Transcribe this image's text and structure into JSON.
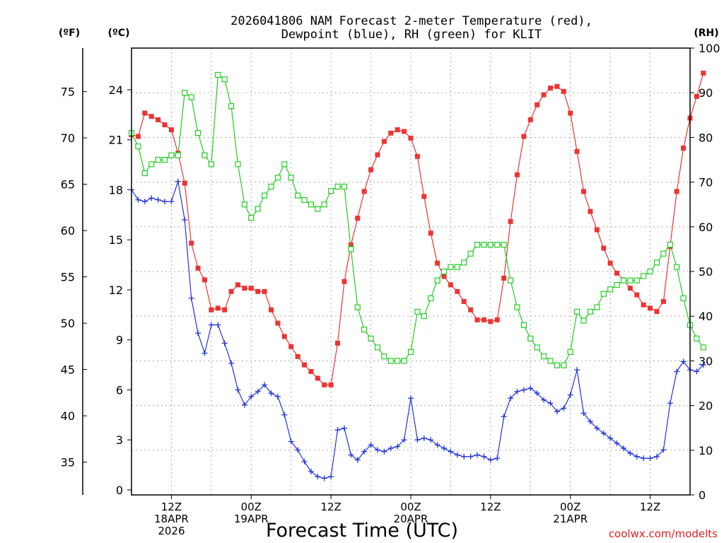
{
  "chart_data": {
    "type": "line",
    "title_line1": "2026041806 NAM Forecast 2-meter Temperature (red),",
    "title_line2": "Dewpoint (blue), RH (green) for KLIT",
    "xlabel": "Forecast Time (UTC)",
    "watermark": "coolwx.com/modelts",
    "unit_f": "(ºF)",
    "unit_c": "(ºC)",
    "unit_rh": "(RH)",
    "x_start_hour": 0,
    "x_end_hour": 84,
    "c_range": [
      -0.3,
      26.5
    ],
    "rh_range": [
      0,
      100
    ],
    "c_ticks": [
      "0",
      "3",
      "6",
      "9",
      "12",
      "15",
      "18",
      "21",
      "24"
    ],
    "f_ticks": [
      "35",
      "40",
      "45",
      "50",
      "55",
      "60",
      "65",
      "70",
      "75"
    ],
    "rh_ticks": [
      "0",
      "10",
      "20",
      "30",
      "40",
      "50",
      "60",
      "70",
      "80",
      "90",
      "100"
    ],
    "x_ticks": [
      {
        "hour": 6,
        "lines": [
          "12Z",
          "18APR",
          "2026"
        ]
      },
      {
        "hour": 18,
        "lines": [
          "00Z",
          "19APR"
        ]
      },
      {
        "hour": 30,
        "lines": [
          "12Z"
        ]
      },
      {
        "hour": 42,
        "lines": [
          "00Z",
          "20APR"
        ]
      },
      {
        "hour": 54,
        "lines": [
          "12Z"
        ]
      },
      {
        "hour": 66,
        "lines": [
          "00Z",
          "21APR"
        ]
      },
      {
        "hour": 78,
        "lines": [
          "12Z"
        ]
      }
    ],
    "colors": {
      "temperature": "#ee3333",
      "dewpoint": "#2233dd",
      "rh": "#22cc22"
    },
    "series": [
      {
        "key": "temperature",
        "axis": "c",
        "values": [
          21.3,
          21.2,
          22.6,
          22.4,
          22.2,
          21.9,
          21.6,
          20.2,
          18.4,
          14.8,
          13.3,
          12.6,
          10.8,
          10.9,
          10.8,
          11.9,
          12.3,
          12.1,
          12.1,
          11.9,
          11.9,
          10.8,
          10.0,
          9.2,
          8.6,
          8.0,
          7.5,
          7.1,
          6.7,
          6.3,
          6.3,
          8.8,
          12.5,
          14.7,
          16.3,
          17.9,
          19.2,
          20.1,
          20.9,
          21.4,
          21.6,
          21.5,
          21.1,
          20.0,
          17.6,
          15.4,
          13.6,
          12.8,
          12.3,
          11.9,
          11.3,
          10.8,
          10.2,
          10.2,
          10.1,
          10.2,
          12.7,
          16.1,
          18.9,
          21.2,
          22.2,
          23.1,
          23.7,
          24.1,
          24.2,
          23.9,
          22.6,
          20.3,
          17.9,
          16.7,
          15.6,
          14.5,
          13.6,
          13.0,
          12.6,
          12.1,
          11.7,
          11.1,
          10.9,
          10.7,
          11.3,
          14.6,
          17.9,
          20.5,
          22.3,
          23.6,
          25.0
        ]
      },
      {
        "key": "dewpoint",
        "axis": "c",
        "values": [
          18.0,
          17.4,
          17.3,
          17.5,
          17.4,
          17.3,
          17.3,
          18.5,
          16.2,
          11.5,
          9.4,
          8.2,
          9.9,
          9.9,
          8.8,
          7.6,
          6.0,
          5.1,
          5.6,
          5.9,
          6.3,
          5.8,
          5.6,
          4.5,
          2.9,
          2.4,
          1.7,
          1.1,
          0.8,
          0.7,
          0.8,
          3.6,
          3.7,
          2.1,
          1.8,
          2.3,
          2.7,
          2.4,
          2.3,
          2.5,
          2.6,
          3.0,
          5.5,
          3.0,
          3.1,
          3.0,
          2.7,
          2.5,
          2.3,
          2.1,
          2.0,
          2.0,
          2.1,
          2.0,
          1.8,
          1.9,
          4.4,
          5.5,
          5.9,
          6.0,
          6.1,
          5.8,
          5.4,
          5.2,
          4.7,
          4.9,
          5.7,
          7.2,
          4.6,
          4.1,
          3.7,
          3.4,
          3.1,
          2.8,
          2.5,
          2.2,
          2.0,
          1.9,
          1.9,
          2.0,
          2.4,
          5.2,
          7.1,
          7.7,
          7.2,
          7.1,
          7.5
        ]
      },
      {
        "key": "rh",
        "axis": "rh",
        "values": [
          81,
          78,
          72,
          74,
          75,
          75,
          76,
          76,
          90,
          89,
          81,
          76,
          74,
          94,
          93,
          87,
          74,
          65,
          62,
          64,
          67,
          69,
          71,
          74,
          71,
          67,
          66,
          65,
          64,
          65,
          68,
          69,
          69,
          55,
          42,
          37,
          35,
          33,
          31,
          30,
          30,
          30,
          32,
          41,
          40,
          44,
          48,
          50,
          51,
          51,
          52,
          54,
          56,
          56,
          56,
          56,
          56,
          48,
          42,
          38,
          35,
          33,
          31,
          30,
          29,
          29,
          32,
          41,
          39,
          41,
          42,
          45,
          46,
          47,
          48,
          48,
          48,
          49,
          50,
          52,
          54,
          56,
          51,
          44,
          38,
          35,
          33
        ]
      }
    ]
  }
}
